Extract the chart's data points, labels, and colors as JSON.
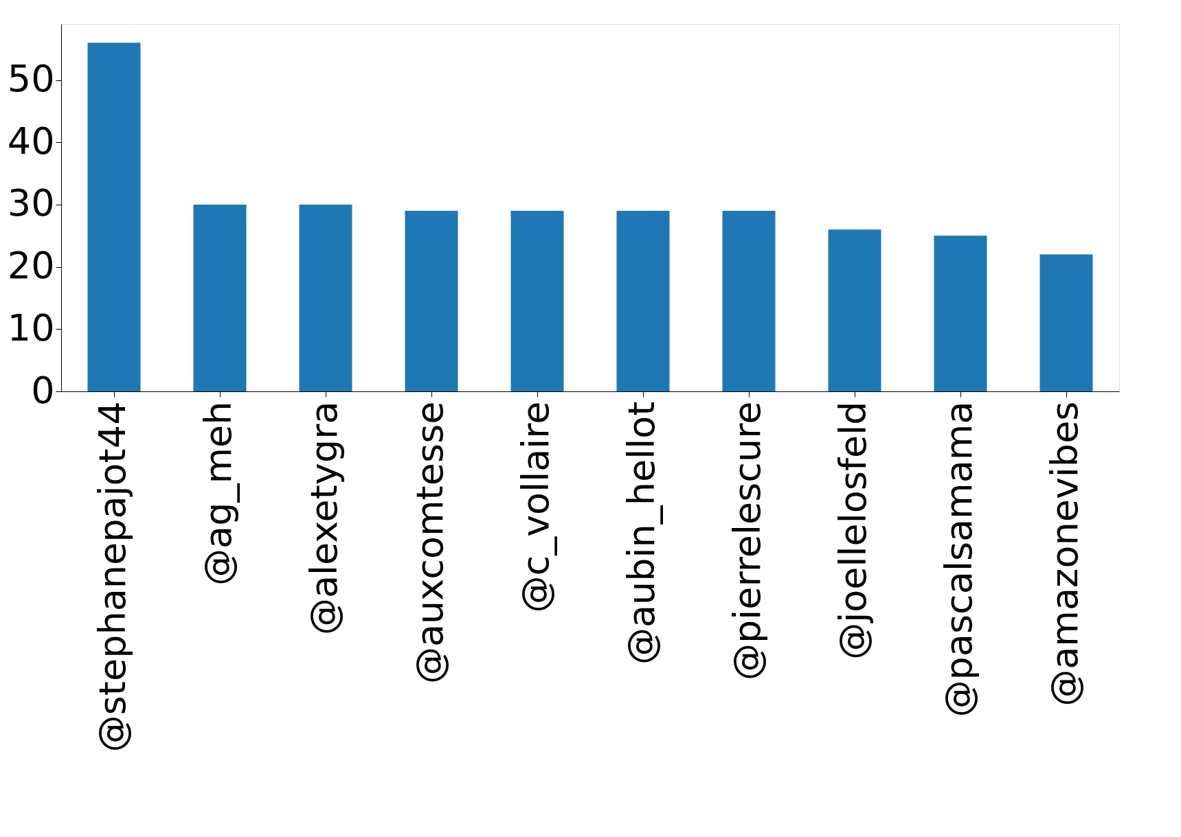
{
  "chart_data": {
    "type": "bar",
    "categories": [
      "@stephanepajot44",
      "@ag_meh",
      "@alexetygra",
      "@auxcomtesse",
      "@c_vollaire",
      "@aubin_hellot",
      "@pierrelescure",
      "@joellelosfeld",
      "@pascalsamama",
      "@amazonevibes"
    ],
    "values": [
      56,
      30,
      30,
      29,
      29,
      29,
      29,
      26,
      25,
      22
    ],
    "color": "#1f77b4",
    "ylim": [
      0,
      59
    ],
    "yticks": [
      0,
      10,
      20,
      30,
      40,
      50
    ],
    "grid": false
  }
}
